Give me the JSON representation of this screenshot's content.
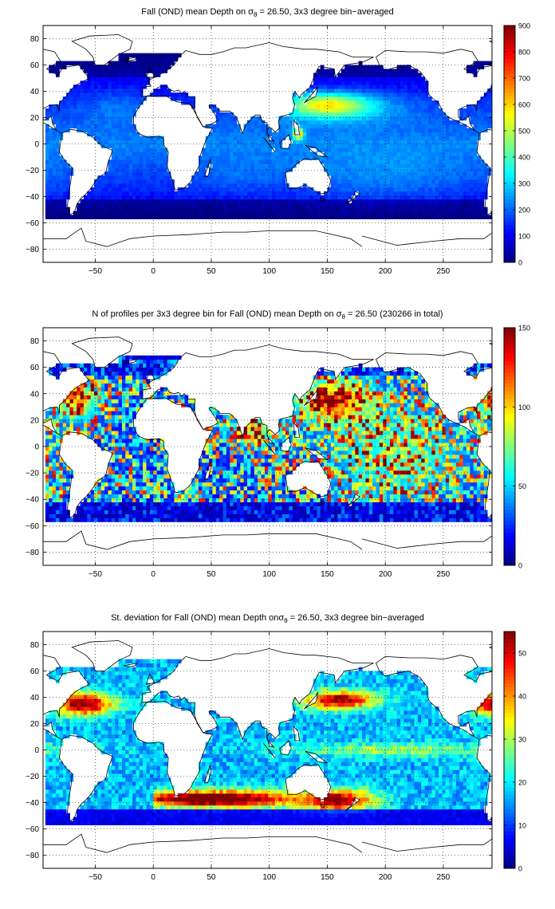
{
  "figure": {
    "background": "#ffffff",
    "land_color": "#ffffff",
    "coast_color": "#000000"
  },
  "chart_data": [
    {
      "type": "heatmap",
      "title_parts": {
        "pre": "Fall (OND) mean Depth on ",
        "sym": "σ",
        "sub": "θ",
        "post": " = 26.50, 3x3 degree bin−averaged"
      },
      "xlim": [
        -95,
        292
      ],
      "ylim": [
        -90,
        90
      ],
      "xticks": [
        -50,
        0,
        50,
        100,
        150,
        200,
        250
      ],
      "yticks": [
        -80,
        -60,
        -40,
        -20,
        0,
        20,
        40,
        60,
        80
      ],
      "xtick_labels": [
        "−50",
        "0",
        "50",
        "100",
        "150",
        "200",
        "250"
      ],
      "ytick_labels": [
        "−80",
        "−60",
        "−40",
        "−20",
        "0",
        "20",
        "40",
        "60",
        "80"
      ],
      "grid": true,
      "colorbar": {
        "min": 0,
        "max": 900,
        "ticks": [
          0,
          100,
          200,
          300,
          400,
          500,
          600,
          700,
          800,
          900
        ],
        "tick_labels": [
          "0",
          "100",
          "200",
          "300",
          "400",
          "500",
          "600",
          "700",
          "800",
          "900"
        ],
        "colormap": "jet"
      },
      "field": "depth",
      "bin_size_deg": 3
    },
    {
      "type": "heatmap",
      "title_parts": {
        "pre": "N of profiles per 3x3 degree bin for Fall (OND) mean Depth on ",
        "sym": "σ",
        "sub": "θ",
        "post": " = 26.50 (230266 in total)"
      },
      "xlim": [
        -95,
        292
      ],
      "ylim": [
        -90,
        90
      ],
      "xticks": [
        -50,
        0,
        50,
        100,
        150,
        200,
        250
      ],
      "yticks": [
        -80,
        -60,
        -40,
        -20,
        0,
        20,
        40,
        60,
        80
      ],
      "xtick_labels": [
        "−50",
        "0",
        "50",
        "100",
        "150",
        "200",
        "250"
      ],
      "ytick_labels": [
        "−80",
        "−60",
        "−40",
        "−20",
        "0",
        "20",
        "40",
        "60",
        "80"
      ],
      "grid": true,
      "colorbar": {
        "min": 0,
        "max": 150,
        "ticks": [
          0,
          50,
          100,
          150
        ],
        "tick_labels": [
          "0",
          "50",
          "100",
          "150"
        ],
        "colormap": "jet"
      },
      "field": "count",
      "bin_size_deg": 3,
      "total_profiles": 230266
    },
    {
      "type": "heatmap",
      "title_parts": {
        "pre": "St. deviation for Fall (OND) mean Depth on",
        "sym": "σ",
        "sub": "θ",
        "post": " = 26.50, 3x3 degree bin−averaged"
      },
      "xlim": [
        -95,
        292
      ],
      "ylim": [
        -90,
        90
      ],
      "xticks": [
        -50,
        0,
        50,
        100,
        150,
        200,
        250
      ],
      "yticks": [
        -80,
        -60,
        -40,
        -20,
        0,
        20,
        40,
        60,
        80
      ],
      "xtick_labels": [
        "−50",
        "0",
        "50",
        "100",
        "150",
        "200",
        "250"
      ],
      "ytick_labels": [
        "−80",
        "−60",
        "−40",
        "−20",
        "0",
        "20",
        "40",
        "60",
        "80"
      ],
      "grid": true,
      "colorbar": {
        "min": 0,
        "max": 55,
        "ticks": [
          0,
          10,
          20,
          30,
          40,
          50
        ],
        "tick_labels": [
          "0",
          "10",
          "20",
          "30",
          "40",
          "50"
        ],
        "colormap": "jet"
      },
      "field": "std",
      "bin_size_deg": 3
    }
  ]
}
